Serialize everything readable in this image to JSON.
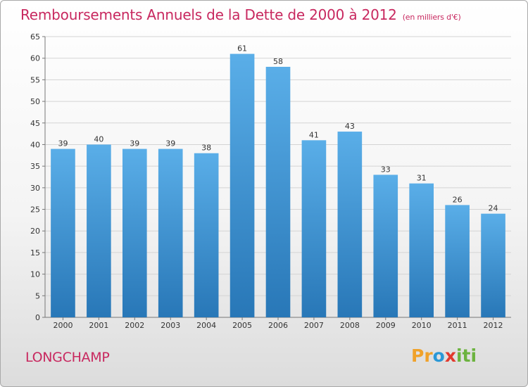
{
  "title": "Remboursements Annuels de la Dette de 2000 à 2012",
  "unit_note": "(en milliers d'€)",
  "town": "LONGCHAMP",
  "logo": {
    "parts": [
      "Pr",
      "o",
      "x",
      "iti"
    ]
  },
  "colors": {
    "accent": "#c8285f",
    "bar_top": "#5aaee8",
    "bar_bottom": "#2877b7"
  },
  "chart_data": {
    "type": "bar",
    "title": "Remboursements Annuels de la Dette de 2000 à 2012",
    "categories": [
      "2000",
      "2001",
      "2002",
      "2003",
      "2004",
      "2005",
      "2006",
      "2007",
      "2008",
      "2009",
      "2010",
      "2011",
      "2012"
    ],
    "values": [
      39,
      40,
      39,
      39,
      38,
      61,
      58,
      41,
      43,
      33,
      31,
      26,
      24
    ],
    "ylim": [
      0,
      65
    ],
    "yticks": [
      0,
      5,
      10,
      15,
      20,
      25,
      30,
      35,
      40,
      45,
      50,
      55,
      60,
      65
    ],
    "grid": true,
    "legend": "none"
  }
}
